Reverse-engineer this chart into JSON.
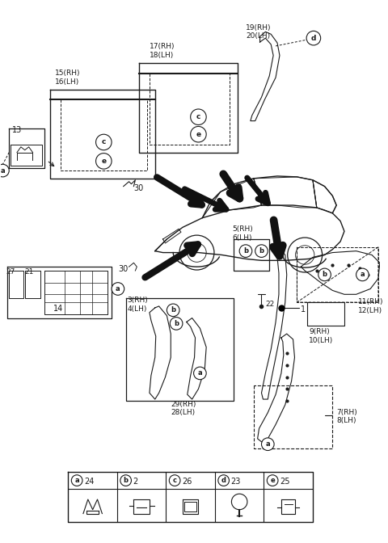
{
  "bg_color": "#ffffff",
  "line_color": "#1a1a1a",
  "fig_width": 4.8,
  "fig_height": 6.72,
  "dpi": 100,
  "legend_items": [
    {
      "label": "a",
      "number": "24"
    },
    {
      "label": "b",
      "number": "2"
    },
    {
      "label": "c",
      "number": "26"
    },
    {
      "label": "d",
      "number": "23"
    },
    {
      "label": "e",
      "number": "25"
    }
  ]
}
